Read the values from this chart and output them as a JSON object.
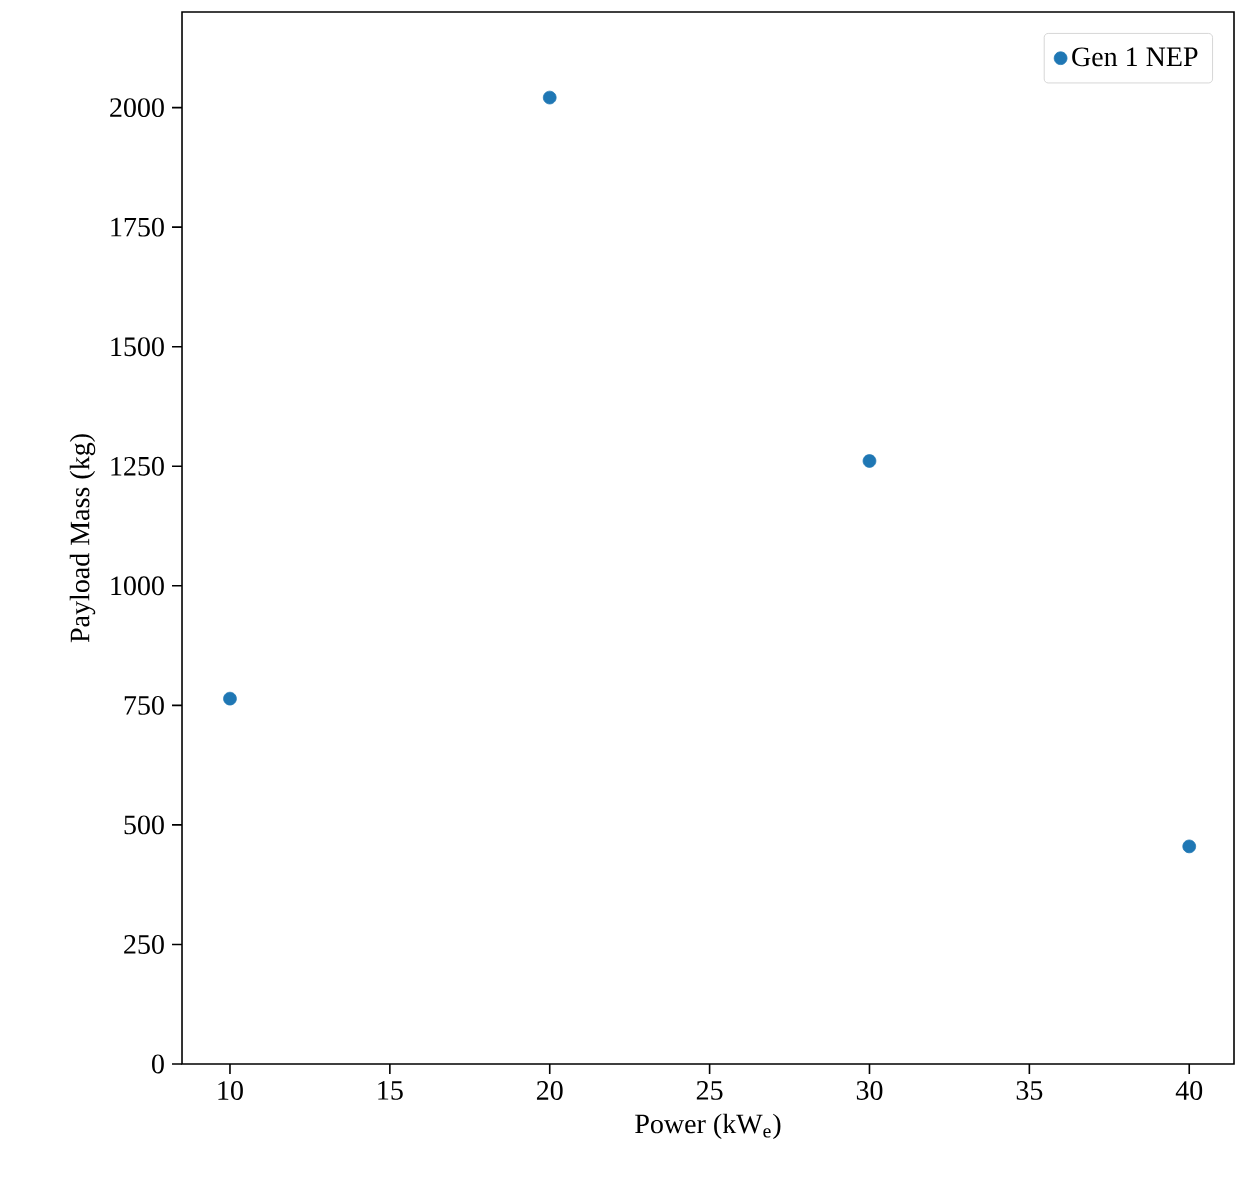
{
  "chart_data": {
    "type": "scatter",
    "xlabel": "Power (kW$_{e}$)",
    "ylabel": "Payload Mass (kg)",
    "x": [
      10,
      20,
      30,
      40
    ],
    "series": [
      {
        "name": "Gen 1 NEP",
        "color": "#1f77b4",
        "values": [
          764,
          2021,
          1261,
          455
        ]
      }
    ],
    "xlim": [
      8.5,
      41.4
    ],
    "ylim": [
      0,
      2200
    ],
    "xticks": [
      10,
      15,
      20,
      25,
      30,
      35,
      40
    ],
    "yticks": [
      0,
      250,
      500,
      750,
      1000,
      1250,
      1500,
      1750,
      2000
    ],
    "legend": "top right"
  }
}
